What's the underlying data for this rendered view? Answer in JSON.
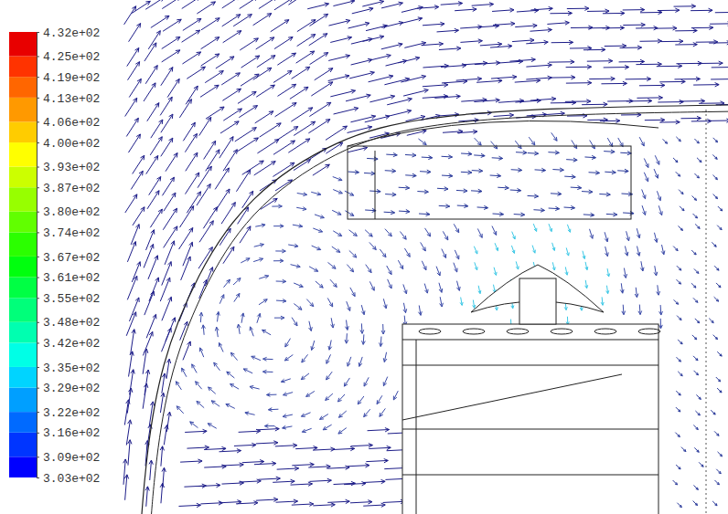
{
  "chart_data": {
    "type": "vector",
    "colorbar": {
      "range": [
        303,
        432
      ],
      "ticks": [
        {
          "value": 303,
          "label": "3.03e+02"
        },
        {
          "value": 309,
          "label": "3.09e+02"
        },
        {
          "value": 316,
          "label": "3.16e+02"
        },
        {
          "value": 322,
          "label": "3.22e+02"
        },
        {
          "value": 329,
          "label": "3.29e+02"
        },
        {
          "value": 335,
          "label": "3.35e+02"
        },
        {
          "value": 342,
          "label": "3.42e+02"
        },
        {
          "value": 348,
          "label": "3.48e+02"
        },
        {
          "value": 355,
          "label": "3.55e+02"
        },
        {
          "value": 361,
          "label": "3.61e+02"
        },
        {
          "value": 367,
          "label": "3.67e+02"
        },
        {
          "value": 374,
          "label": "3.74e+02"
        },
        {
          "value": 380,
          "label": "3.80e+02"
        },
        {
          "value": 387,
          "label": "3.87e+02"
        },
        {
          "value": 393,
          "label": "3.93e+02"
        },
        {
          "value": 400,
          "label": "4.00e+02"
        },
        {
          "value": 406,
          "label": "4.06e+02"
        },
        {
          "value": 413,
          "label": "4.13e+02"
        },
        {
          "value": 419,
          "label": "4.19e+02"
        },
        {
          "value": 425,
          "label": "4.25e+02"
        },
        {
          "value": 432,
          "label": "4.32e+02"
        }
      ],
      "colors": [
        "#0000ff",
        "#0035ff",
        "#006aff",
        "#009fff",
        "#00d4ff",
        "#00ffe6",
        "#00ffb0",
        "#00ff7a",
        "#00ff44",
        "#00ff0e",
        "#2bff00",
        "#61ff00",
        "#97ff00",
        "#ccff00",
        "#ffff00",
        "#ffcc00",
        "#ff9900",
        "#ff6600",
        "#ff3300",
        "#e80000"
      ]
    }
  }
}
